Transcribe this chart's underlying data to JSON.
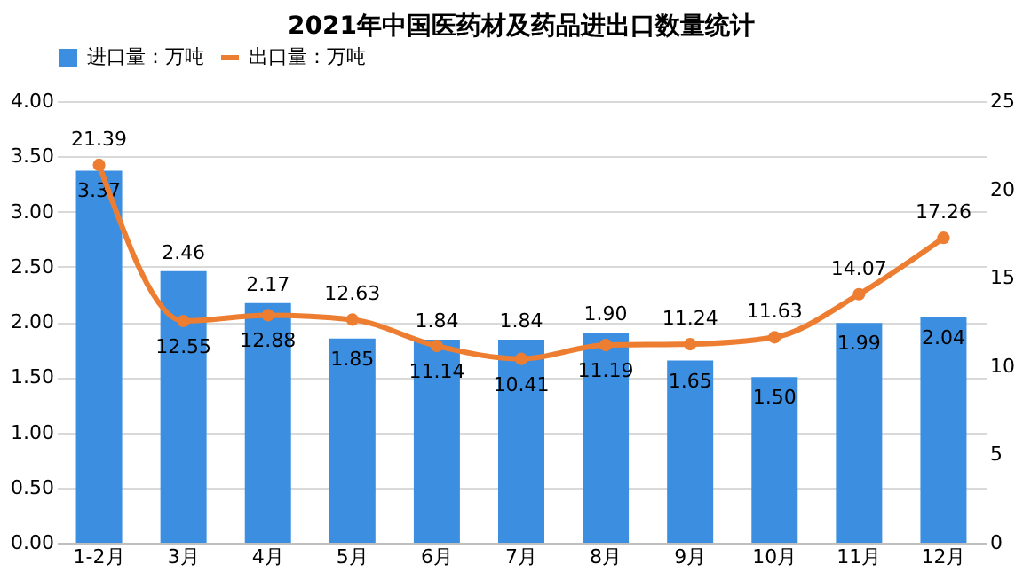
{
  "chart_data": {
    "type": "bar",
    "title": "2021年中国医药材及药品进出口数量统计",
    "categories": [
      "1-2月",
      "3月",
      "4月",
      "5月",
      "6月",
      "7月",
      "8月",
      "9月",
      "10月",
      "11月",
      "12月"
    ],
    "series": [
      {
        "name": "进口量：万吨",
        "color": "#3c8fe0",
        "values": [
          3.37,
          2.46,
          2.17,
          1.85,
          1.84,
          1.84,
          1.9,
          1.65,
          1.5,
          1.99,
          2.04
        ],
        "value_labels": [
          "3.37",
          "2.46",
          "2.17",
          "1.85",
          "1.84",
          "1.84",
          "1.90",
          "1.65",
          "1.50",
          "1.99",
          "2.04"
        ]
      },
      {
        "name": "出口量：万吨",
        "type": "line",
        "axis": "y2",
        "color": "#ed7d31",
        "marker": "circle",
        "values": [
          21.39,
          12.55,
          12.88,
          12.63,
          11.14,
          10.41,
          11.19,
          11.24,
          11.63,
          14.07,
          17.26
        ],
        "value_labels": [
          "21.39",
          "12.55",
          "12.88",
          "12.63",
          "11.14",
          "10.41",
          "11.19",
          "11.24",
          "11.63",
          "14.07",
          "17.26"
        ]
      }
    ],
    "ylim": [
      0,
      4
    ],
    "yticks": [
      {
        "value": 0,
        "label": "0.00"
      },
      {
        "value": 0.5,
        "label": "0.50"
      },
      {
        "value": 1,
        "label": "1.00"
      },
      {
        "value": 1.5,
        "label": "1.50"
      },
      {
        "value": 2,
        "label": "2.00"
      },
      {
        "value": 2.5,
        "label": "2.50"
      },
      {
        "value": 3,
        "label": "3.00"
      },
      {
        "value": 3.5,
        "label": "3.50"
      },
      {
        "value": 4,
        "label": "4.00"
      }
    ],
    "y2lim": [
      0,
      25
    ],
    "y2ticks": [
      0,
      5,
      10,
      15,
      20,
      25
    ],
    "grid": "y",
    "legend": "top"
  }
}
